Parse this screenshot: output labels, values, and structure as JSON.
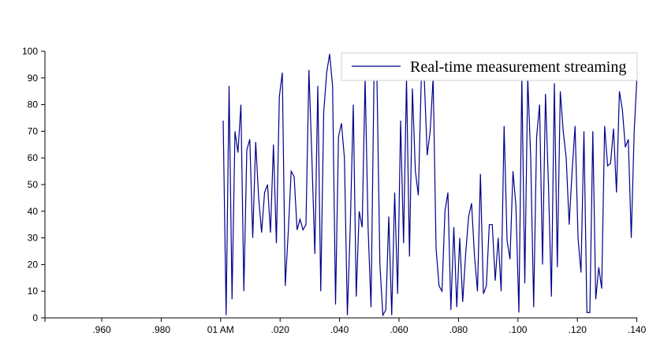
{
  "chart_data": {
    "type": "line",
    "title": "",
    "xlabel": "",
    "ylabel": "",
    "ylim": [
      0,
      100
    ],
    "y_ticks": [
      0,
      10,
      20,
      30,
      40,
      50,
      60,
      70,
      80,
      90,
      100
    ],
    "x_ticks": [
      ".960",
      ".980",
      "01 AM",
      ".020",
      ".040",
      ".060",
      ".080",
      ".100",
      ".120",
      ".140"
    ],
    "legend_position": "top-right",
    "grid": false,
    "line_color": "#00008b",
    "series": [
      {
        "name": "Real-time measurement streaming",
        "values": [
          74,
          1,
          87,
          7,
          70,
          62,
          80,
          10,
          63,
          67,
          30,
          66,
          45,
          32,
          47,
          50,
          32,
          65,
          28,
          83,
          92,
          12,
          32,
          55,
          53,
          33,
          37,
          33,
          35,
          93,
          60,
          24,
          87,
          10,
          77,
          92,
          99,
          87,
          5,
          68,
          73,
          60,
          1,
          35,
          80,
          8,
          40,
          34,
          90,
          34,
          4,
          90,
          90,
          20,
          1,
          3,
          38,
          1,
          47,
          9,
          74,
          28,
          90,
          23,
          86,
          55,
          46,
          90,
          90,
          61,
          70,
          90,
          26,
          12,
          10,
          40,
          47,
          3,
          34,
          4,
          30,
          6,
          24,
          38,
          43,
          23,
          10,
          54,
          9,
          12,
          35,
          35,
          14,
          30,
          10,
          72,
          29,
          22,
          55,
          42,
          2,
          90,
          13,
          90,
          60,
          4,
          68,
          80,
          20,
          84,
          50,
          8,
          88,
          19,
          85,
          70,
          60,
          35,
          55,
          72,
          30,
          17,
          70,
          2,
          2,
          70,
          7,
          19,
          11,
          72,
          57,
          58,
          71,
          47,
          85,
          78,
          64,
          67,
          30,
          70,
          92
        ]
      }
    ]
  }
}
